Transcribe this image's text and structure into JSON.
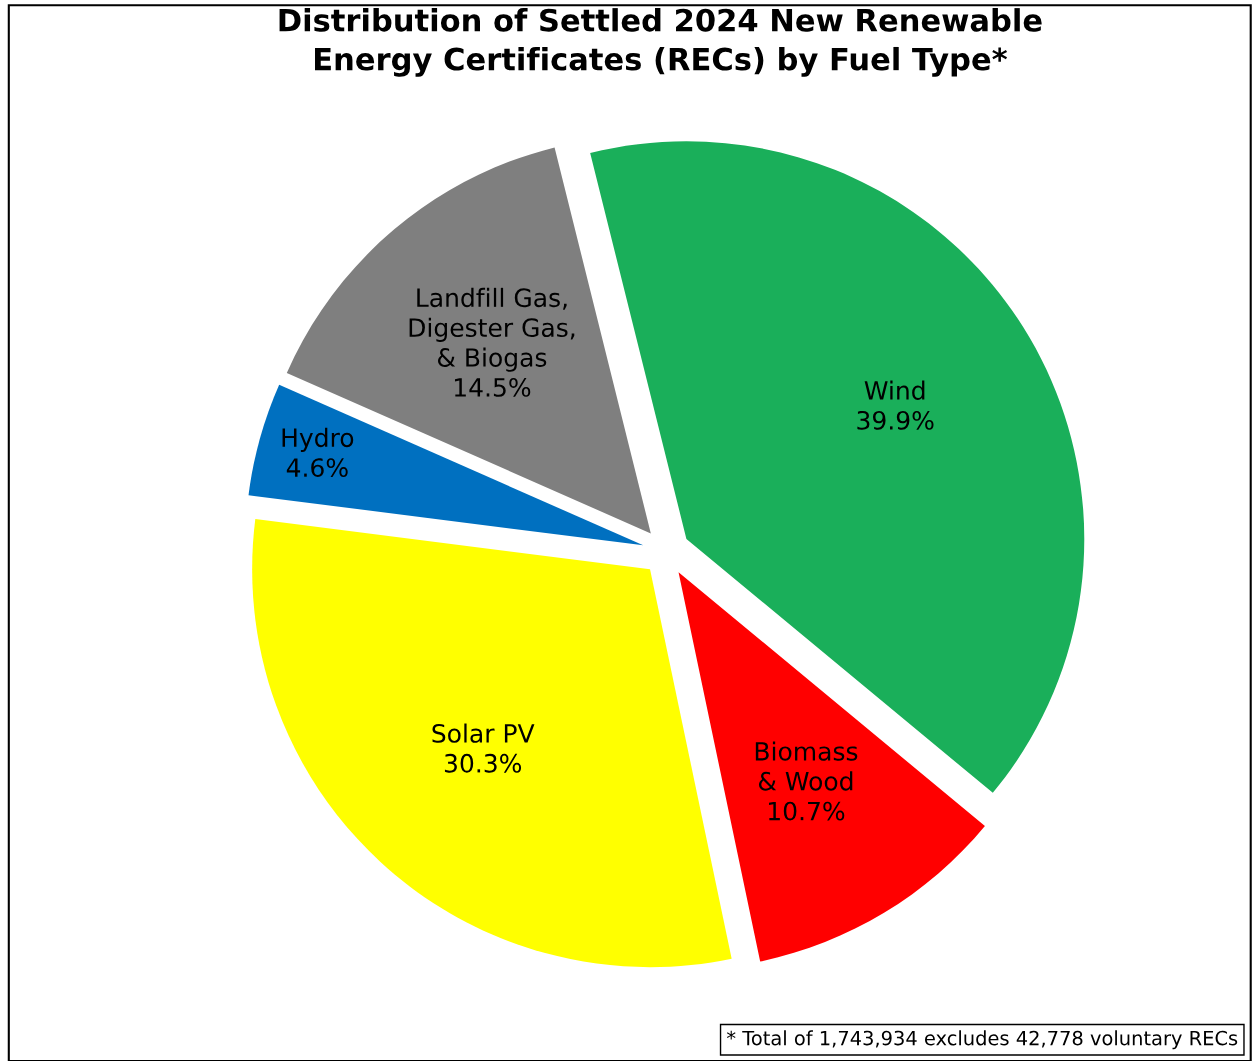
{
  "chart_data": {
    "type": "pie",
    "title": "Distribution of Settled 2024 New Renewable\nEnergy Certificates (RECs) by Fuel Type*",
    "categories": [
      "Wind",
      "Biomass\n& Wood",
      "Solar PV",
      "Hydro",
      "Landfill Gas,\nDigester Gas,\n& Biogas"
    ],
    "values": [
      39.9,
      10.7,
      30.3,
      4.6,
      14.5
    ],
    "value_labels": [
      "39.9%",
      "10.7%",
      "30.3%",
      "4.6%",
      "14.5%"
    ],
    "colors": [
      "#1aaf5a",
      "#ff0000",
      "#ffff00",
      "#0070c0",
      "#7f7f7f"
    ],
    "annotations": [
      "* Total of 1,743,934 excludes 42,778 voluntary RECs"
    ],
    "legend": false
  }
}
